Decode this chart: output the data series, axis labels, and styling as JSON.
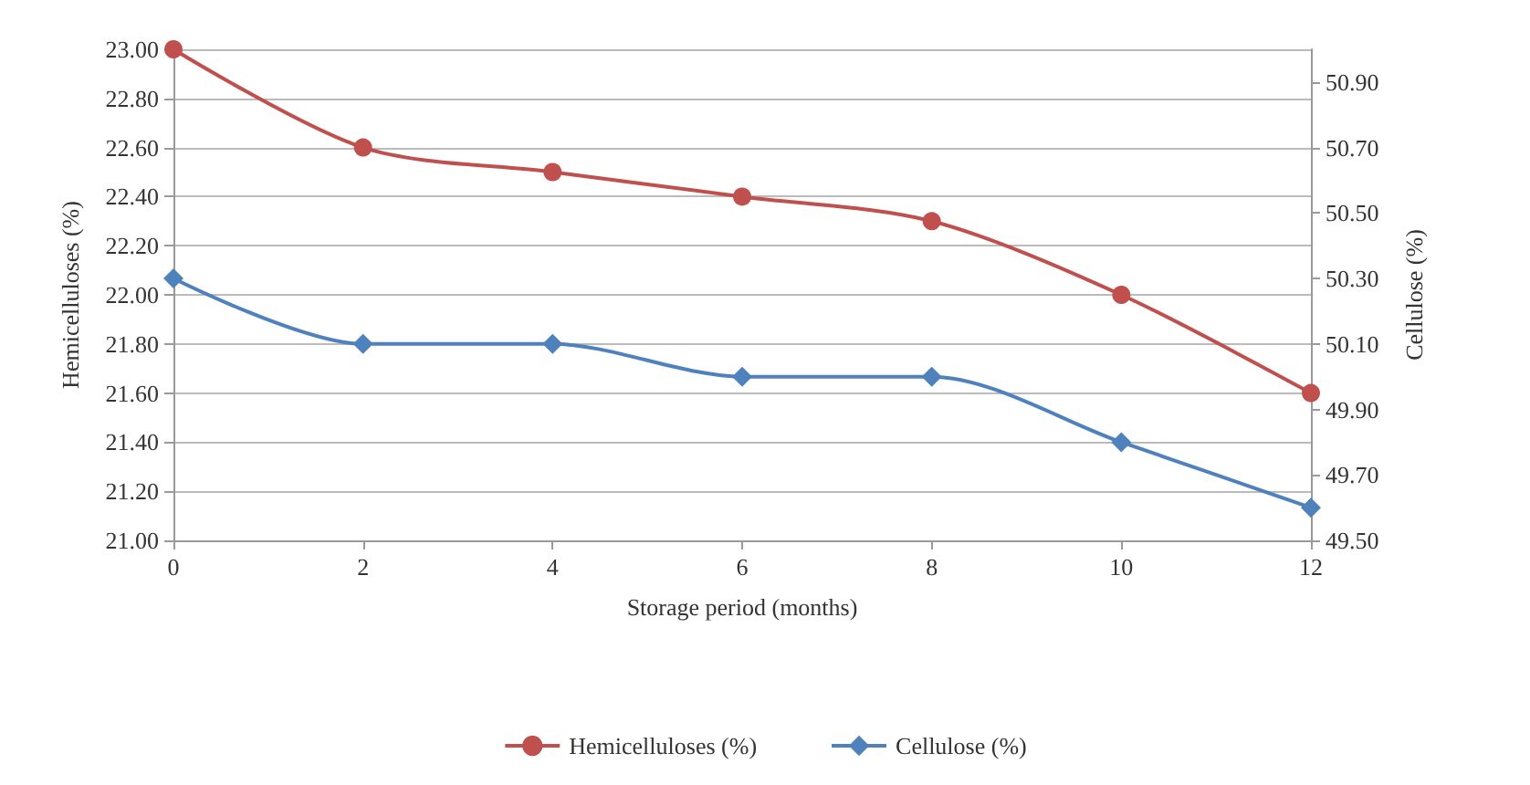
{
  "chart_data": {
    "type": "line",
    "xlabel": "Storage period (months)",
    "ylabel": "Hemicelluloses (%)",
    "y2label": "Cellulose (%)",
    "x": [
      0,
      2,
      4,
      6,
      8,
      10,
      12
    ],
    "xlim": [
      0,
      12
    ],
    "xticks": [
      0,
      2,
      4,
      6,
      8,
      10,
      12
    ],
    "ylim": [
      21,
      23
    ],
    "yticks": [
      {
        "value": 21,
        "label": "21.00"
      },
      {
        "value": 21.2,
        "label": "21.20"
      },
      {
        "value": 21.4,
        "label": "21.40"
      },
      {
        "value": 21.6,
        "label": "21.60"
      },
      {
        "value": 21.8,
        "label": "21.80"
      },
      {
        "value": 22,
        "label": "22.00"
      },
      {
        "value": 22.2,
        "label": "22.20"
      },
      {
        "value": 22.4,
        "label": "22.40"
      },
      {
        "value": 22.6,
        "label": "22.60"
      },
      {
        "value": 22.8,
        "label": "22.80"
      },
      {
        "value": 23,
        "label": "23.00"
      }
    ],
    "y2lim": [
      49.5,
      51.0
    ],
    "y2ticks": [
      {
        "value": 49.5,
        "label": "49.50"
      },
      {
        "value": 49.7,
        "label": "49.70"
      },
      {
        "value": 49.9,
        "label": "49.90"
      },
      {
        "value": 50.1,
        "label": "50.10"
      },
      {
        "value": 50.3,
        "label": "50.30"
      },
      {
        "value": 50.5,
        "label": "50.50"
      },
      {
        "value": 50.7,
        "label": "50.70"
      },
      {
        "value": 50.9,
        "label": "50.90"
      }
    ],
    "series": [
      {
        "name": "Hemicelluloses (%)",
        "color": "#c0504d",
        "marker": "circle",
        "values": [
          23.0,
          22.6,
          22.5,
          22.4,
          22.3,
          22.0,
          21.6
        ]
      },
      {
        "name": "Cellulose (%)",
        "color": "#4f81bd",
        "marker": "diamond",
        "axis": "y2",
        "values": [
          50.3,
          50.1,
          50.1,
          50.0,
          50.0,
          49.8,
          49.6
        ]
      }
    ],
    "grid": "y",
    "legend": "bottom",
    "line_style": "solid"
  }
}
